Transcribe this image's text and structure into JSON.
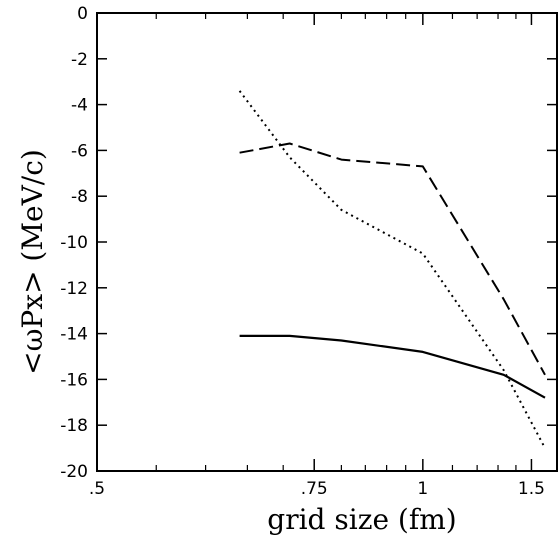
{
  "chart_data": {
    "type": "line",
    "title": "",
    "xlabel": "grid size (fm)",
    "ylabel": "<ωPx> (MeV/c)",
    "xscale": "reciprocal",
    "xlim": [
      0.5,
      1.7
    ],
    "ylim": [
      -20,
      0
    ],
    "x_tick_labels": [
      ".5",
      ".75",
      "1",
      "1.5"
    ],
    "x_ticks": [
      0.5,
      0.75,
      1.0,
      1.5
    ],
    "x_minor_ticks": [
      0.55,
      0.6,
      0.65,
      0.7,
      0.8,
      0.85,
      0.9,
      0.95,
      1.1,
      1.2,
      1.3,
      1.4
    ],
    "y_ticks": [
      0,
      -2,
      -4,
      -6,
      -8,
      -10,
      -12,
      -14,
      -16,
      -18,
      -20
    ],
    "y_tick_labels": [
      "0",
      "-2",
      "-4",
      "-6",
      "-8",
      "-10",
      "-12",
      "-14",
      "-16",
      "-18",
      "-20"
    ],
    "grid": false,
    "series": [
      {
        "style": "solid",
        "x": [
          0.64,
          0.71,
          0.8,
          1.0,
          1.33,
          1.6
        ],
        "y": [
          -14.1,
          -14.1,
          -14.3,
          -14.8,
          -15.8,
          -16.8
        ]
      },
      {
        "style": "dashed",
        "x": [
          0.64,
          0.71,
          0.8,
          1.0,
          1.33,
          1.6
        ],
        "y": [
          -6.1,
          -5.7,
          -6.4,
          -6.7,
          -12.5,
          -15.8
        ]
      },
      {
        "style": "dotted",
        "x": [
          0.64,
          0.71,
          0.8,
          1.0,
          1.33,
          1.6
        ],
        "y": [
          -3.4,
          -6.3,
          -8.6,
          -10.5,
          -15.6,
          -19.0
        ]
      }
    ]
  }
}
